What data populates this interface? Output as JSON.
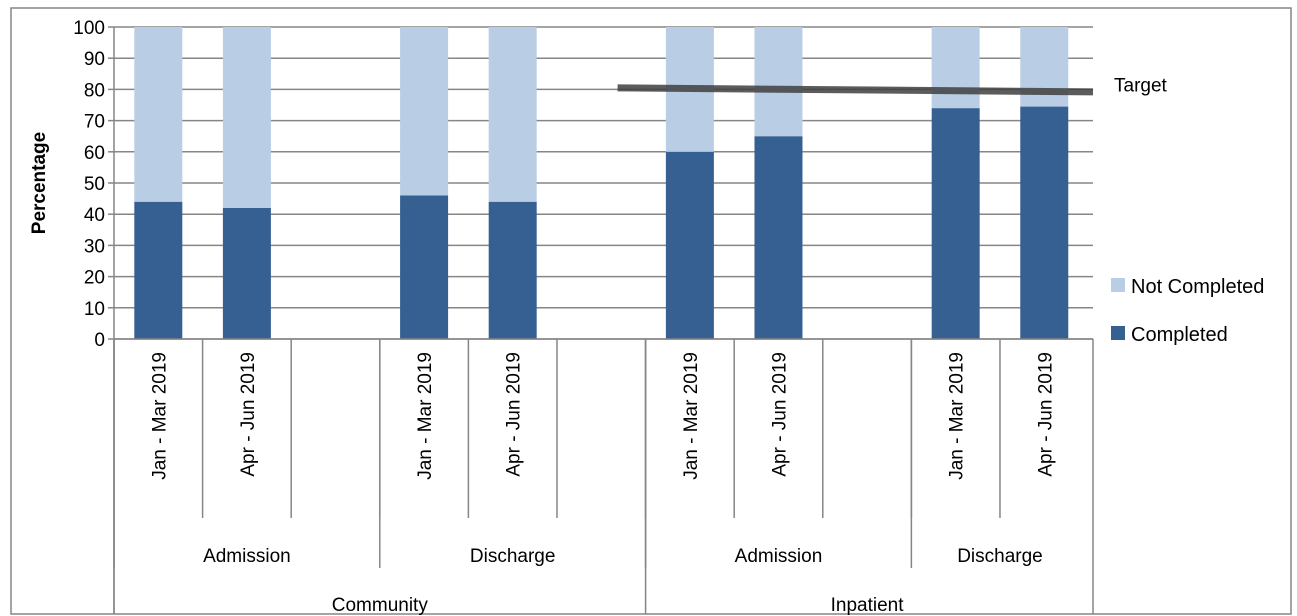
{
  "chart_data": {
    "type": "bar",
    "stacked": true,
    "ylabel": "Percentage",
    "xlabel": "",
    "ylim": [
      0,
      100
    ],
    "y_ticks": [
      0,
      10,
      20,
      30,
      40,
      50,
      60,
      70,
      80,
      90,
      100
    ],
    "grid": true,
    "legend_position": "right",
    "categories": [
      "Jan - Mar 2019",
      "Apr - Jun 2019",
      "",
      "Jan - Mar 2019",
      "Apr - Jun 2019",
      "",
      "Jan - Mar 2019",
      "Apr - Jun 2019",
      "",
      "Jan - Mar 2019",
      "Apr - Jun 2019"
    ],
    "subgroups": [
      {
        "label": "Admission",
        "start": 0,
        "count": 3
      },
      {
        "label": "Discharge",
        "start": 3,
        "count": 3
      },
      {
        "label": "Admission",
        "start": 6,
        "count": 3
      },
      {
        "label": "Discharge",
        "start": 9,
        "count": 2
      }
    ],
    "groups": [
      {
        "label": "Community",
        "start": 0,
        "count": 6
      },
      {
        "label": "Inpatient",
        "start": 6,
        "count": 5
      }
    ],
    "series": [
      {
        "name": "Completed",
        "color": "#376092",
        "values": [
          44,
          42,
          null,
          46,
          44,
          null,
          60,
          65,
          null,
          74,
          74.5
        ]
      },
      {
        "name": "Not Completed",
        "color": "#b9cde5",
        "values": [
          56,
          58,
          null,
          54,
          56,
          null,
          40,
          35,
          null,
          26,
          25.5
        ]
      }
    ],
    "target": {
      "label": "Target",
      "start_index": 6,
      "y_start": 80.5,
      "y_end": 79.2,
      "color": "#404040"
    }
  }
}
